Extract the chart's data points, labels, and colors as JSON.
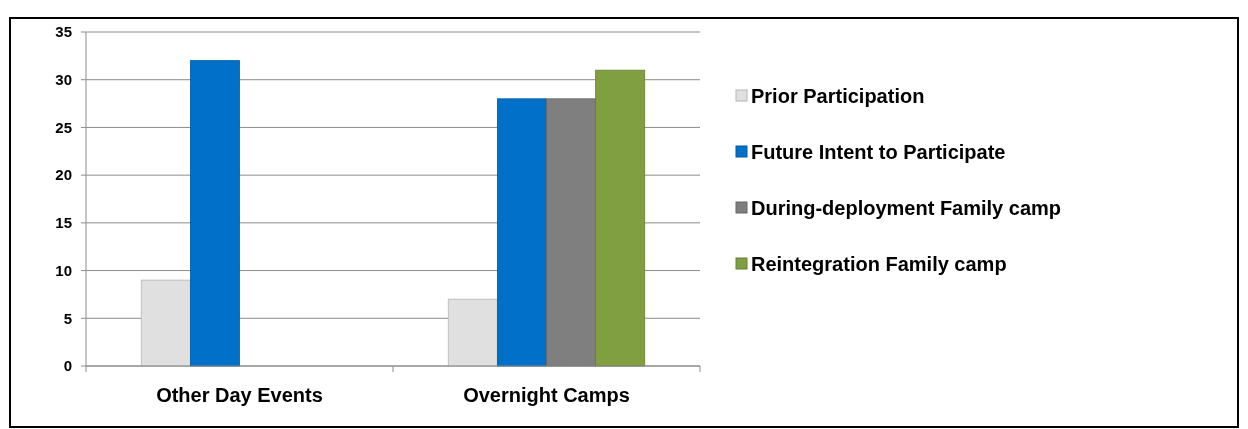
{
  "chart_data": {
    "type": "bar",
    "categories": [
      "Other Day Events",
      "Overnight Camps"
    ],
    "series": [
      {
        "name": "Prior Participation",
        "color": "#e0e0e0",
        "values": [
          9,
          7
        ]
      },
      {
        "name": "Future Intent to Participate",
        "color": "#0070c8",
        "values": [
          32,
          28
        ]
      },
      {
        "name": "During-deployment Family camp",
        "color": "#7f7f7f",
        "values": [
          null,
          28
        ]
      },
      {
        "name": "Reintegration Family camp",
        "color": "#7f9f41",
        "values": [
          null,
          31
        ]
      }
    ],
    "ylim": [
      0,
      35
    ],
    "yticks": [
      0,
      5,
      10,
      15,
      20,
      25,
      30,
      35
    ],
    "grid": "y",
    "legend": "right"
  }
}
